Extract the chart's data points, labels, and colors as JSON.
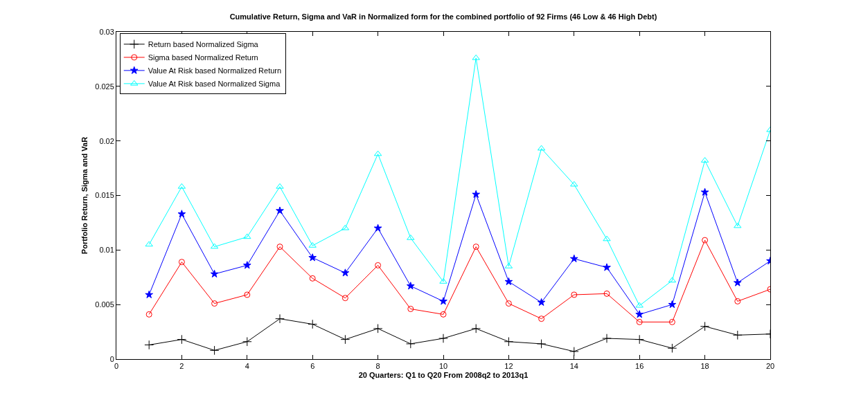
{
  "chart_data": {
    "type": "line",
    "title": "Cumulative Return, Sigma and VaR in Normalized form for the combined portfolio of 92 Firms (46 Low & 46 High Debt)",
    "xlabel": "20 Quarters: Q1 to Q20 From 2008q2 to 2013q1",
    "ylabel": "Portfolio Return, Sigma and VaR",
    "x": [
      1,
      2,
      3,
      4,
      5,
      6,
      7,
      8,
      9,
      10,
      11,
      12,
      13,
      14,
      15,
      16,
      17,
      18,
      19,
      20
    ],
    "xlim": [
      0,
      20
    ],
    "xticks": [
      0,
      2,
      4,
      6,
      8,
      10,
      12,
      14,
      16,
      18,
      20
    ],
    "ylim": [
      0,
      0.03
    ],
    "yticks": [
      0,
      0.005,
      0.01,
      0.015,
      0.02,
      0.025,
      0.03
    ],
    "legend": "top left",
    "line_style": "solid",
    "series": [
      {
        "name": "Return based Normalized Sigma",
        "color": "#000000",
        "marker": "cross",
        "values": [
          0.0013,
          0.0018,
          0.0008,
          0.0016,
          0.0037,
          0.0032,
          0.0018,
          0.0028,
          0.0014,
          0.0019,
          0.0028,
          0.0016,
          0.0014,
          0.0007,
          0.0019,
          0.0018,
          0.001,
          0.003,
          0.0022,
          0.0023
        ]
      },
      {
        "name": "Sigma based Normalized Return",
        "color": "#ff0000",
        "marker": "circle",
        "values": [
          0.0041,
          0.0089,
          0.0051,
          0.0059,
          0.0103,
          0.0074,
          0.0056,
          0.0086,
          0.0046,
          0.0041,
          0.0103,
          0.0051,
          0.0037,
          0.0059,
          0.006,
          0.0034,
          0.0034,
          0.0109,
          0.0053,
          0.0064
        ]
      },
      {
        "name": "Value At Risk based Normalized Return",
        "color": "#0000ff",
        "marker": "star",
        "values": [
          0.0059,
          0.0133,
          0.0078,
          0.0086,
          0.0136,
          0.0093,
          0.0079,
          0.012,
          0.0067,
          0.0053,
          0.0151,
          0.0071,
          0.0052,
          0.0092,
          0.0084,
          0.0041,
          0.005,
          0.0153,
          0.007,
          0.009
        ]
      },
      {
        "name": "Value At Risk based Normalized Sigma",
        "color": "#00ffff",
        "marker": "triangle",
        "values": [
          0.0105,
          0.0158,
          0.0103,
          0.0112,
          0.0158,
          0.0104,
          0.012,
          0.0188,
          0.0111,
          0.0071,
          0.0276,
          0.0085,
          0.0193,
          0.016,
          0.011,
          0.0049,
          0.0072,
          0.0182,
          0.0122,
          0.021
        ]
      }
    ]
  }
}
